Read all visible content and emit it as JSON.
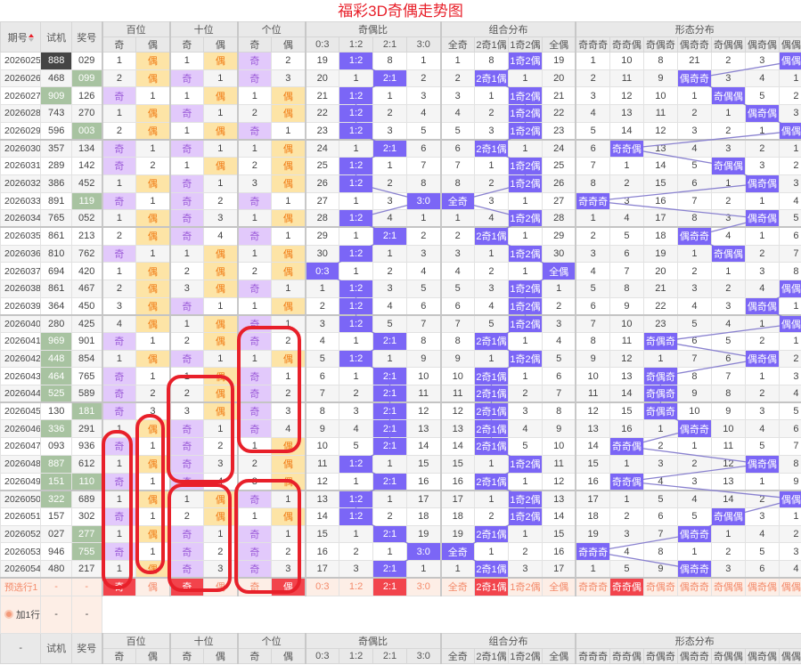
{
  "title": "福彩3D奇偶走势图",
  "header": {
    "issue": "期号",
    "trial": "试机",
    "draw": "奖号",
    "bottom_issue": "-",
    "groups": [
      {
        "label": "百位",
        "subs": [
          "奇",
          "偶"
        ]
      },
      {
        "label": "十位",
        "subs": [
          "奇",
          "偶"
        ]
      },
      {
        "label": "个位",
        "subs": [
          "奇",
          "偶"
        ]
      },
      {
        "label": "奇偶比",
        "subs": [
          "0:3",
          "1:2",
          "2:1",
          "3:0"
        ]
      },
      {
        "label": "组合分布",
        "subs": [
          "全奇",
          "2奇1偶",
          "1奇2偶",
          "全偶"
        ]
      },
      {
        "label": "形态分布",
        "subs": [
          "奇奇奇",
          "奇奇偶",
          "奇偶奇",
          "偶奇奇",
          "奇偶偶",
          "偶奇偶",
          "偶偶奇"
        ]
      }
    ]
  },
  "colors": {
    "odd_hit": "#e2c9fb",
    "even_hit": "#fde4a6",
    "strong_hit": "#7b66f6",
    "pair": "#a8c3a1",
    "triple": "#444444",
    "selected": "#f2444c",
    "annotation": "#e8202a"
  },
  "rows": [
    {
      "issue": "2026025",
      "trial": "888",
      "trial_type": "triple",
      "draw": "029",
      "draw_type": "",
      "cells": [
        "1",
        "偶",
        "1",
        "偶",
        "奇",
        "2",
        "19",
        "1:2",
        "8",
        "1",
        "1",
        "8",
        "1奇2偶",
        "19",
        "1",
        "10",
        "8",
        "21",
        "2",
        "3",
        "偶偶奇"
      ]
    },
    {
      "issue": "2026026",
      "trial": "468",
      "trial_type": "",
      "draw": "099",
      "draw_type": "pair",
      "cells": [
        "2",
        "偶",
        "奇",
        "1",
        "奇",
        "3",
        "20",
        "1",
        "2:1",
        "2",
        "2",
        "2奇1偶",
        "1",
        "20",
        "2",
        "11",
        "9",
        "偶奇奇",
        "3",
        "4",
        "1"
      ]
    },
    {
      "issue": "2026027",
      "trial": "909",
      "trial_type": "pair",
      "draw": "126",
      "draw_type": "",
      "cells": [
        "奇",
        "1",
        "1",
        "偶",
        "1",
        "偶",
        "21",
        "1:2",
        "1",
        "3",
        "3",
        "1",
        "1奇2偶",
        "21",
        "3",
        "12",
        "10",
        "1",
        "奇偶偶",
        "5",
        "2"
      ]
    },
    {
      "issue": "2026028",
      "trial": "743",
      "trial_type": "",
      "draw": "270",
      "draw_type": "",
      "cells": [
        "1",
        "偶",
        "奇",
        "1",
        "2",
        "偶",
        "22",
        "1:2",
        "2",
        "4",
        "4",
        "2",
        "1奇2偶",
        "22",
        "4",
        "13",
        "11",
        "2",
        "1",
        "偶奇偶",
        "3"
      ]
    },
    {
      "issue": "2026029",
      "trial": "596",
      "trial_type": "",
      "draw": "003",
      "draw_type": "pair",
      "cells": [
        "2",
        "偶",
        "1",
        "偶",
        "奇",
        "1",
        "23",
        "1:2",
        "3",
        "5",
        "5",
        "3",
        "1奇2偶",
        "23",
        "5",
        "14",
        "12",
        "3",
        "2",
        "1",
        "偶偶奇"
      ]
    },
    {
      "issue": "2026030",
      "trial": "357",
      "trial_type": "",
      "draw": "134",
      "draw_type": "",
      "cells": [
        "奇",
        "1",
        "奇",
        "1",
        "1",
        "偶",
        "24",
        "1",
        "2:1",
        "6",
        "6",
        "2奇1偶",
        "1",
        "24",
        "6",
        "奇奇偶",
        "13",
        "4",
        "3",
        "2",
        "1"
      ]
    },
    {
      "issue": "2026031",
      "trial": "289",
      "trial_type": "",
      "draw": "142",
      "draw_type": "",
      "cells": [
        "奇",
        "2",
        "1",
        "偶",
        "2",
        "偶",
        "25",
        "1:2",
        "1",
        "7",
        "7",
        "1",
        "1奇2偶",
        "25",
        "7",
        "1",
        "14",
        "5",
        "奇偶偶",
        "3",
        "2"
      ]
    },
    {
      "issue": "2026032",
      "trial": "386",
      "trial_type": "",
      "draw": "452",
      "draw_type": "",
      "cells": [
        "1",
        "偶",
        "奇",
        "1",
        "3",
        "偶",
        "26",
        "1:2",
        "2",
        "8",
        "8",
        "2",
        "1奇2偶",
        "26",
        "8",
        "2",
        "15",
        "6",
        "1",
        "偶奇偶",
        "3"
      ]
    },
    {
      "issue": "2026033",
      "trial": "891",
      "trial_type": "",
      "draw": "119",
      "draw_type": "pair",
      "cells": [
        "奇",
        "1",
        "奇",
        "2",
        "奇",
        "1",
        "27",
        "1",
        "3",
        "3:0",
        "全奇",
        "3",
        "1",
        "27",
        "奇奇奇",
        "3",
        "16",
        "7",
        "2",
        "1",
        "4"
      ]
    },
    {
      "issue": "2026034",
      "trial": "765",
      "trial_type": "",
      "draw": "052",
      "draw_type": "",
      "cells": [
        "1",
        "偶",
        "奇",
        "3",
        "1",
        "偶",
        "28",
        "1:2",
        "4",
        "1",
        "1",
        "4",
        "1奇2偶",
        "28",
        "1",
        "4",
        "17",
        "8",
        "3",
        "偶奇偶",
        "5"
      ]
    },
    {
      "issue": "2026035",
      "trial": "861",
      "trial_type": "",
      "draw": "213",
      "draw_type": "",
      "cells": [
        "2",
        "偶",
        "奇",
        "4",
        "奇",
        "1",
        "29",
        "1",
        "2:1",
        "2",
        "2",
        "2奇1偶",
        "1",
        "29",
        "2",
        "5",
        "18",
        "偶奇奇",
        "4",
        "1",
        "6"
      ]
    },
    {
      "issue": "2026036",
      "trial": "810",
      "trial_type": "",
      "draw": "762",
      "draw_type": "",
      "cells": [
        "奇",
        "1",
        "1",
        "偶",
        "1",
        "偶",
        "30",
        "1:2",
        "1",
        "3",
        "3",
        "1",
        "1奇2偶",
        "30",
        "3",
        "6",
        "19",
        "1",
        "奇偶偶",
        "2",
        "7"
      ]
    },
    {
      "issue": "2026037",
      "trial": "694",
      "trial_type": "",
      "draw": "420",
      "draw_type": "",
      "cells": [
        "1",
        "偶",
        "2",
        "偶",
        "2",
        "偶",
        "0:3",
        "1",
        "2",
        "4",
        "4",
        "2",
        "1",
        "全偶",
        "4",
        "7",
        "20",
        "2",
        "1",
        "3",
        "8"
      ]
    },
    {
      "issue": "2026038",
      "trial": "861",
      "trial_type": "",
      "draw": "467",
      "draw_type": "",
      "cells": [
        "2",
        "偶",
        "3",
        "偶",
        "奇",
        "1",
        "1",
        "1:2",
        "3",
        "5",
        "5",
        "3",
        "1奇2偶",
        "1",
        "5",
        "8",
        "21",
        "3",
        "2",
        "4",
        "偶偶奇"
      ]
    },
    {
      "issue": "2026039",
      "trial": "364",
      "trial_type": "",
      "draw": "450",
      "draw_type": "",
      "cells": [
        "3",
        "偶",
        "奇",
        "1",
        "1",
        "偶",
        "2",
        "1:2",
        "4",
        "6",
        "6",
        "4",
        "1奇2偶",
        "2",
        "6",
        "9",
        "22",
        "4",
        "3",
        "偶奇偶",
        "1"
      ]
    },
    {
      "issue": "2026040",
      "trial": "280",
      "trial_type": "",
      "draw": "425",
      "draw_type": "",
      "cells": [
        "4",
        "偶",
        "1",
        "偶",
        "奇",
        "1",
        "3",
        "1:2",
        "5",
        "7",
        "7",
        "5",
        "1奇2偶",
        "3",
        "7",
        "10",
        "23",
        "5",
        "4",
        "1",
        "偶偶奇"
      ]
    },
    {
      "issue": "2026041",
      "trial": "969",
      "trial_type": "pair",
      "draw": "901",
      "draw_type": "",
      "cells": [
        "奇",
        "1",
        "2",
        "偶",
        "奇",
        "2",
        "4",
        "1",
        "2:1",
        "8",
        "8",
        "2奇1偶",
        "1",
        "4",
        "8",
        "11",
        "奇偶奇",
        "6",
        "5",
        "2",
        "1"
      ]
    },
    {
      "issue": "2026042",
      "trial": "448",
      "trial_type": "pair",
      "draw": "854",
      "draw_type": "",
      "cells": [
        "1",
        "偶",
        "奇",
        "1",
        "1",
        "偶",
        "5",
        "1:2",
        "1",
        "9",
        "9",
        "1",
        "1奇2偶",
        "5",
        "9",
        "12",
        "1",
        "7",
        "6",
        "偶奇偶",
        "2"
      ]
    },
    {
      "issue": "2026043",
      "trial": "464",
      "trial_type": "pair",
      "draw": "765",
      "draw_type": "",
      "cells": [
        "奇",
        "1",
        "1",
        "偶",
        "奇",
        "1",
        "6",
        "1",
        "2:1",
        "10",
        "10",
        "2奇1偶",
        "1",
        "6",
        "10",
        "13",
        "奇偶奇",
        "8",
        "7",
        "1",
        "3"
      ]
    },
    {
      "issue": "2026044",
      "trial": "525",
      "trial_type": "pair",
      "draw": "589",
      "draw_type": "",
      "cells": [
        "奇",
        "2",
        "2",
        "偶",
        "奇",
        "2",
        "7",
        "2",
        "2:1",
        "11",
        "11",
        "2奇1偶",
        "2",
        "7",
        "11",
        "14",
        "奇偶奇",
        "9",
        "8",
        "2",
        "4"
      ]
    },
    {
      "issue": "2026045",
      "trial": "130",
      "trial_type": "",
      "draw": "181",
      "draw_type": "pair",
      "cells": [
        "奇",
        "3",
        "3",
        "偶",
        "奇",
        "3",
        "8",
        "3",
        "2:1",
        "12",
        "12",
        "2奇1偶",
        "3",
        "8",
        "12",
        "15",
        "奇偶奇",
        "10",
        "9",
        "3",
        "5"
      ]
    },
    {
      "issue": "2026046",
      "trial": "336",
      "trial_type": "pair",
      "draw": "291",
      "draw_type": "",
      "cells": [
        "1",
        "偶",
        "奇",
        "1",
        "奇",
        "4",
        "9",
        "4",
        "2:1",
        "13",
        "13",
        "2奇1偶",
        "4",
        "9",
        "13",
        "16",
        "1",
        "偶奇奇",
        "10",
        "4",
        "6"
      ]
    },
    {
      "issue": "2026047",
      "trial": "093",
      "trial_type": "",
      "draw": "936",
      "draw_type": "",
      "cells": [
        "奇",
        "1",
        "奇",
        "2",
        "1",
        "偶",
        "10",
        "5",
        "2:1",
        "14",
        "14",
        "2奇1偶",
        "5",
        "10",
        "14",
        "奇奇偶",
        "2",
        "1",
        "11",
        "5",
        "7"
      ]
    },
    {
      "issue": "2026048",
      "trial": "887",
      "trial_type": "pair",
      "draw": "612",
      "draw_type": "",
      "cells": [
        "1",
        "偶",
        "奇",
        "3",
        "2",
        "偶",
        "11",
        "1:2",
        "1",
        "15",
        "15",
        "1",
        "1奇2偶",
        "11",
        "15",
        "1",
        "3",
        "2",
        "12",
        "偶奇偶",
        "8"
      ]
    },
    {
      "issue": "2026049",
      "trial": "151",
      "trial_type": "pair",
      "draw": "110",
      "draw_type": "pair",
      "cells": [
        "奇",
        "1",
        "奇",
        "4",
        "3",
        "偶",
        "12",
        "1",
        "2:1",
        "16",
        "16",
        "2奇1偶",
        "1",
        "12",
        "16",
        "奇奇偶",
        "4",
        "3",
        "13",
        "1",
        "9"
      ]
    },
    {
      "issue": "2026050",
      "trial": "322",
      "trial_type": "pair",
      "draw": "689",
      "draw_type": "",
      "cells": [
        "1",
        "偶",
        "1",
        "偶",
        "奇",
        "1",
        "13",
        "1:2",
        "1",
        "17",
        "17",
        "1",
        "1奇2偶",
        "13",
        "17",
        "1",
        "5",
        "4",
        "14",
        "2",
        "偶偶奇"
      ]
    },
    {
      "issue": "2026051",
      "trial": "157",
      "trial_type": "",
      "draw": "302",
      "draw_type": "",
      "cells": [
        "奇",
        "1",
        "2",
        "偶",
        "1",
        "偶",
        "14",
        "1:2",
        "2",
        "18",
        "18",
        "2",
        "1奇2偶",
        "14",
        "18",
        "2",
        "6",
        "5",
        "奇偶偶",
        "3",
        "1"
      ]
    },
    {
      "issue": "2026052",
      "trial": "027",
      "trial_type": "",
      "draw": "277",
      "draw_type": "pair",
      "cells": [
        "1",
        "偶",
        "奇",
        "1",
        "奇",
        "1",
        "15",
        "1",
        "2:1",
        "19",
        "19",
        "2奇1偶",
        "1",
        "15",
        "19",
        "3",
        "7",
        "偶奇奇",
        "1",
        "4",
        "2"
      ]
    },
    {
      "issue": "2026053",
      "trial": "946",
      "trial_type": "",
      "draw": "755",
      "draw_type": "pair",
      "cells": [
        "奇",
        "1",
        "奇",
        "2",
        "奇",
        "2",
        "16",
        "2",
        "1",
        "3:0",
        "全奇",
        "1",
        "2",
        "16",
        "奇奇奇",
        "4",
        "8",
        "1",
        "2",
        "5",
        "3"
      ]
    },
    {
      "issue": "2026054",
      "trial": "480",
      "trial_type": "",
      "draw": "217",
      "draw_type": "",
      "cells": [
        "1",
        "偶",
        "奇",
        "3",
        "奇",
        "3",
        "17",
        "3",
        "2:1",
        "1",
        "1",
        "2奇1偶",
        "3",
        "17",
        "1",
        "5",
        "9",
        "偶奇奇",
        "3",
        "6",
        "4"
      ]
    }
  ],
  "preselect": {
    "label": "预选行1",
    "trial": "-",
    "draw": "-",
    "cells": [
      {
        "text": "奇",
        "selected": true
      },
      {
        "text": "偶",
        "selected": false
      },
      {
        "text": "奇",
        "selected": true
      },
      {
        "text": "偶",
        "selected": false
      },
      {
        "text": "奇",
        "selected": false
      },
      {
        "text": "偶",
        "selected": true
      },
      {
        "text": "0:3",
        "selected": false
      },
      {
        "text": "1:2",
        "selected": false
      },
      {
        "text": "2:1",
        "selected": true
      },
      {
        "text": "3:0",
        "selected": false
      },
      {
        "text": "全奇",
        "selected": false
      },
      {
        "text": "2奇1偶",
        "selected": true
      },
      {
        "text": "1奇2偶",
        "selected": false
      },
      {
        "text": "全偶",
        "selected": false
      },
      {
        "text": "奇奇奇",
        "selected": false
      },
      {
        "text": "奇奇偶",
        "selected": true
      },
      {
        "text": "奇偶奇",
        "selected": false
      },
      {
        "text": "偶奇奇",
        "selected": false
      },
      {
        "text": "奇偶偶",
        "selected": false
      },
      {
        "text": "偶奇偶",
        "selected": false
      },
      {
        "text": "偶偶奇",
        "selected": false
      }
    ]
  },
  "add_row": {
    "label": "加1行",
    "icon": "add-circle-icon",
    "trial": "-",
    "draw": "-"
  }
}
